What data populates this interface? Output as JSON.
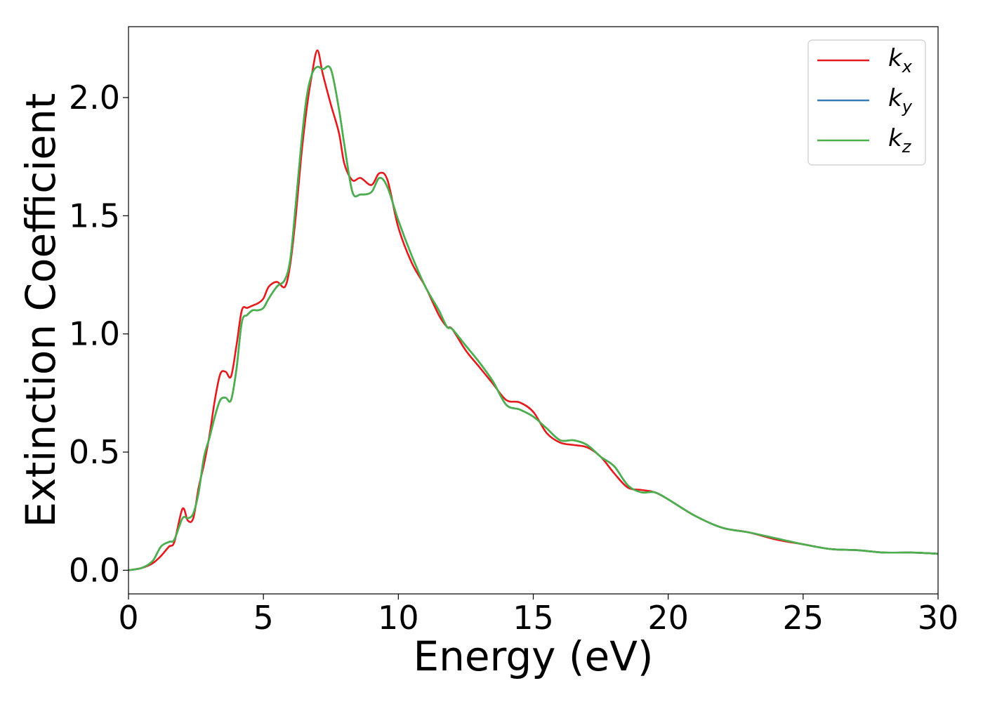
{
  "chart_data": {
    "type": "line",
    "title": "",
    "xlabel": "Energy (eV)",
    "ylabel": "Extinction Coefficient",
    "xlim": [
      0,
      30
    ],
    "ylim": [
      -0.1,
      2.3
    ],
    "xticks": [
      0,
      5,
      10,
      15,
      20,
      25,
      30
    ],
    "xtick_labels": [
      "0",
      "5",
      "10",
      "15",
      "20",
      "25",
      "30"
    ],
    "yticks": [
      0.0,
      0.5,
      1.0,
      1.5,
      2.0
    ],
    "ytick_labels": [
      "0.0",
      "0.5",
      "1.0",
      "1.5",
      "2.0"
    ],
    "grid": false,
    "legend_position": "top-right",
    "series": [
      {
        "name": "k_x",
        "label_main": "k",
        "label_sub": "x",
        "color": "#e41a1c",
        "x": [
          0,
          0.5,
          0.9,
          1.2,
          1.5,
          1.7,
          2.0,
          2.2,
          2.4,
          2.6,
          2.8,
          3.0,
          3.2,
          3.4,
          3.6,
          3.8,
          4.0,
          4.2,
          4.4,
          4.6,
          4.8,
          5.0,
          5.2,
          5.5,
          5.8,
          6.0,
          6.2,
          6.4,
          6.6,
          6.8,
          7.0,
          7.2,
          7.5,
          7.8,
          8.0,
          8.3,
          8.6,
          9.0,
          9.3,
          9.6,
          10.0,
          10.5,
          11.0,
          11.5,
          11.8,
          12.0,
          12.5,
          13.0,
          13.5,
          14.0,
          14.5,
          15.0,
          15.5,
          16.0,
          16.5,
          17.0,
          17.5,
          18.0,
          18.5,
          19.0,
          19.5,
          20.0,
          21.0,
          22.0,
          23.0,
          24.0,
          25.0,
          26.0,
          27.0,
          28.0,
          29.0,
          30.0
        ],
        "y": [
          0.0,
          0.01,
          0.03,
          0.06,
          0.1,
          0.12,
          0.26,
          0.21,
          0.22,
          0.35,
          0.45,
          0.57,
          0.72,
          0.83,
          0.84,
          0.82,
          0.95,
          1.1,
          1.11,
          1.12,
          1.13,
          1.15,
          1.2,
          1.22,
          1.2,
          1.3,
          1.5,
          1.75,
          1.95,
          2.1,
          2.2,
          2.1,
          1.97,
          1.85,
          1.72,
          1.65,
          1.66,
          1.63,
          1.68,
          1.65,
          1.45,
          1.3,
          1.2,
          1.08,
          1.03,
          1.02,
          0.93,
          0.86,
          0.79,
          0.72,
          0.71,
          0.67,
          0.58,
          0.54,
          0.53,
          0.52,
          0.48,
          0.41,
          0.35,
          0.34,
          0.33,
          0.3,
          0.23,
          0.18,
          0.16,
          0.13,
          0.11,
          0.09,
          0.085,
          0.075,
          0.075,
          0.07
        ]
      },
      {
        "name": "k_y",
        "label_main": "k",
        "label_sub": "y",
        "color": "#377eb8",
        "x": [
          0,
          0.5,
          0.9,
          1.2,
          1.5,
          1.7,
          2.0,
          2.2,
          2.4,
          2.6,
          2.8,
          3.0,
          3.2,
          3.4,
          3.6,
          3.8,
          4.0,
          4.2,
          4.4,
          4.6,
          4.8,
          5.0,
          5.2,
          5.5,
          5.8,
          6.0,
          6.2,
          6.4,
          6.6,
          6.8,
          7.0,
          7.2,
          7.5,
          7.8,
          8.0,
          8.3,
          8.6,
          9.0,
          9.3,
          9.6,
          10.0,
          10.5,
          11.0,
          11.5,
          11.8,
          12.0,
          12.5,
          13.0,
          13.5,
          14.0,
          14.5,
          15.0,
          15.5,
          16.0,
          16.5,
          17.0,
          17.5,
          18.0,
          18.5,
          19.0,
          19.5,
          20.0,
          21.0,
          22.0,
          23.0,
          24.0,
          25.0,
          26.0,
          27.0,
          28.0,
          29.0,
          30.0
        ],
        "y": [
          0.0,
          0.01,
          0.04,
          0.1,
          0.12,
          0.13,
          0.22,
          0.22,
          0.24,
          0.33,
          0.48,
          0.56,
          0.65,
          0.72,
          0.73,
          0.72,
          0.85,
          1.05,
          1.08,
          1.1,
          1.1,
          1.11,
          1.15,
          1.2,
          1.23,
          1.32,
          1.55,
          1.8,
          2.0,
          2.1,
          2.13,
          2.12,
          2.12,
          1.95,
          1.8,
          1.6,
          1.59,
          1.6,
          1.66,
          1.62,
          1.48,
          1.33,
          1.2,
          1.1,
          1.03,
          1.02,
          0.95,
          0.88,
          0.8,
          0.7,
          0.68,
          0.65,
          0.6,
          0.55,
          0.55,
          0.53,
          0.48,
          0.44,
          0.36,
          0.33,
          0.33,
          0.3,
          0.23,
          0.18,
          0.16,
          0.135,
          0.11,
          0.09,
          0.085,
          0.075,
          0.075,
          0.07
        ]
      },
      {
        "name": "k_z",
        "label_main": "k",
        "label_sub": "z",
        "color": "#4daf4a",
        "x": [
          0,
          0.5,
          0.9,
          1.2,
          1.5,
          1.7,
          2.0,
          2.2,
          2.4,
          2.6,
          2.8,
          3.0,
          3.2,
          3.4,
          3.6,
          3.8,
          4.0,
          4.2,
          4.4,
          4.6,
          4.8,
          5.0,
          5.2,
          5.5,
          5.8,
          6.0,
          6.2,
          6.4,
          6.6,
          6.8,
          7.0,
          7.2,
          7.5,
          7.8,
          8.0,
          8.3,
          8.6,
          9.0,
          9.3,
          9.6,
          10.0,
          10.5,
          11.0,
          11.5,
          11.8,
          12.0,
          12.5,
          13.0,
          13.5,
          14.0,
          14.5,
          15.0,
          15.5,
          16.0,
          16.5,
          17.0,
          17.5,
          18.0,
          18.5,
          19.0,
          19.5,
          20.0,
          21.0,
          22.0,
          23.0,
          24.0,
          25.0,
          26.0,
          27.0,
          28.0,
          29.0,
          30.0
        ],
        "y": [
          0.0,
          0.01,
          0.04,
          0.1,
          0.12,
          0.13,
          0.22,
          0.22,
          0.24,
          0.33,
          0.48,
          0.56,
          0.65,
          0.72,
          0.73,
          0.72,
          0.85,
          1.05,
          1.08,
          1.1,
          1.1,
          1.11,
          1.15,
          1.2,
          1.23,
          1.32,
          1.55,
          1.8,
          2.0,
          2.1,
          2.13,
          2.12,
          2.12,
          1.95,
          1.8,
          1.6,
          1.59,
          1.6,
          1.66,
          1.62,
          1.48,
          1.33,
          1.2,
          1.1,
          1.03,
          1.02,
          0.95,
          0.88,
          0.8,
          0.7,
          0.68,
          0.65,
          0.6,
          0.55,
          0.55,
          0.53,
          0.48,
          0.44,
          0.36,
          0.33,
          0.33,
          0.3,
          0.23,
          0.18,
          0.16,
          0.135,
          0.11,
          0.09,
          0.085,
          0.075,
          0.075,
          0.07
        ]
      }
    ]
  }
}
